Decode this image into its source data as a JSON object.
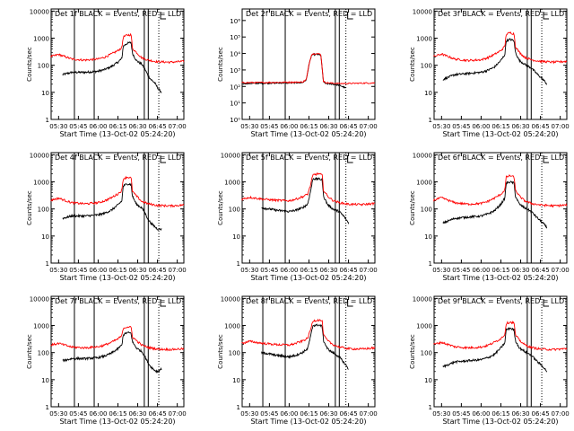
{
  "figure": {
    "xlabel": "Start Time (13-Oct-02 05:24:20)",
    "ylabel": "Counts/sec",
    "x_tick_labels": [
      "05:30",
      "05:45",
      "06:00",
      "06:15",
      "06:30",
      "06:45",
      "07:00"
    ],
    "colors": {
      "events": "#000000",
      "lld": "#ff0000",
      "axes": "#000000"
    }
  },
  "chart_data": [
    {
      "type": "line",
      "title": "Det 1f BLACK = Events, RED = LLD",
      "xlim": [
        "05:24:20",
        "07:05:00"
      ],
      "ylim": [
        1,
        12000
      ],
      "yscale": "log",
      "y_tick_labels": [
        "1",
        "10",
        "100",
        "1000",
        "10000"
      ],
      "events_start": "05:33",
      "events_end": "06:48",
      "vlines_solid": [
        "05:42",
        "05:57",
        "06:35",
        "06:38"
      ],
      "vlines_dotted": [
        "06:46"
      ],
      "series": [
        {
          "name": "Events",
          "x": [
            "05:33",
            "05:40",
            "05:50",
            "06:00",
            "06:05",
            "06:10",
            "06:15",
            "06:18",
            "06:19",
            "06:22",
            "06:25",
            "06:26",
            "06:29",
            "06:33",
            "06:35",
            "06:38",
            "06:40",
            "06:43",
            "06:45",
            "06:48"
          ],
          "y": [
            45,
            55,
            55,
            60,
            70,
            90,
            130,
            180,
            500,
            650,
            700,
            280,
            150,
            110,
            80,
            40,
            30,
            22,
            15,
            10
          ]
        },
        {
          "name": "LLD",
          "x": [
            "05:24",
            "05:30",
            "05:40",
            "05:50",
            "06:00",
            "06:05",
            "06:10",
            "06:15",
            "06:18",
            "06:19",
            "06:22",
            "06:25",
            "06:26",
            "06:29",
            "06:33",
            "06:38",
            "06:45",
            "06:55",
            "07:05"
          ],
          "y": [
            210,
            250,
            170,
            155,
            170,
            200,
            260,
            350,
            450,
            1100,
            1300,
            1350,
            420,
            300,
            190,
            155,
            135,
            130,
            140
          ]
        }
      ]
    },
    {
      "type": "line",
      "title": "Det 2f BLACK = Events, RED = LLD",
      "xlim": [
        "05:24:20",
        "07:05:00"
      ],
      "ylim": [
        1,
        5000000
      ],
      "yscale": "log",
      "y_tick_labels": [
        "10⁰",
        "10¹",
        "10²",
        "10³",
        "10⁴",
        "10⁵",
        "10⁶"
      ],
      "events_start": "05:24",
      "events_end": "06:43",
      "vlines_solid": [
        "05:40",
        "05:57",
        "06:35",
        "06:38"
      ],
      "vlines_dotted": [
        "06:43"
      ],
      "series": [
        {
          "name": "Events",
          "x": [
            "05:24",
            "05:45",
            "06:00",
            "06:10",
            "06:13",
            "06:15",
            "06:17",
            "06:20",
            "06:24",
            "06:26",
            "06:28",
            "06:32",
            "06:38",
            "06:43"
          ],
          "y": [
            150,
            160,
            165,
            170,
            250,
            2000,
            8000,
            9000,
            8000,
            180,
            150,
            140,
            120,
            80
          ]
        },
        {
          "name": "LLD",
          "x": [
            "05:24",
            "05:45",
            "06:00",
            "06:10",
            "06:13",
            "06:15",
            "06:17",
            "06:20",
            "06:24",
            "06:26",
            "06:28",
            "06:32",
            "06:40",
            "07:05"
          ],
          "y": [
            170,
            175,
            180,
            185,
            260,
            2200,
            9000,
            10000,
            9000,
            200,
            170,
            160,
            150,
            165
          ]
        }
      ]
    },
    {
      "type": "line",
      "title": "Det 3f BLACK = Events, RED = LLD",
      "xlim": [
        "05:24:20",
        "07:05:00"
      ],
      "ylim": [
        1,
        12000
      ],
      "yscale": "log",
      "y_tick_labels": [
        "1",
        "10",
        "100",
        "1000",
        "10000"
      ],
      "events_start": "05:31",
      "events_end": "06:50",
      "vlines_solid": [
        "06:35",
        "06:38"
      ],
      "vlines_dotted": [
        "06:46"
      ],
      "series": [
        {
          "name": "Events",
          "x": [
            "05:31",
            "05:40",
            "05:50",
            "06:00",
            "06:05",
            "06:10",
            "06:15",
            "06:18",
            "06:19",
            "06:22",
            "06:25",
            "06:26",
            "06:29",
            "06:33",
            "06:38",
            "06:43",
            "06:47",
            "06:50"
          ],
          "y": [
            30,
            45,
            50,
            55,
            65,
            85,
            150,
            250,
            800,
            900,
            800,
            300,
            150,
            110,
            80,
            45,
            30,
            20
          ]
        },
        {
          "name": "LLD",
          "x": [
            "05:24",
            "05:30",
            "05:40",
            "05:50",
            "06:00",
            "06:05",
            "06:10",
            "06:15",
            "06:18",
            "06:19",
            "06:22",
            "06:25",
            "06:26",
            "06:29",
            "06:33",
            "06:38",
            "06:45",
            "06:55",
            "07:05"
          ],
          "y": [
            210,
            260,
            170,
            150,
            160,
            190,
            250,
            350,
            500,
            1400,
            1600,
            1450,
            500,
            300,
            200,
            160,
            140,
            130,
            140
          ]
        }
      ]
    },
    {
      "type": "line",
      "title": "Det 4f BLACK = Events, RED = LLD",
      "xlim": [
        "05:24:20",
        "07:05:00"
      ],
      "ylim": [
        1,
        12000
      ],
      "yscale": "log",
      "y_tick_labels": [
        "1",
        "10",
        "100",
        "1000",
        "10000"
      ],
      "events_start": "05:33",
      "events_end": "06:48",
      "vlines_solid": [
        "05:42",
        "05:57",
        "06:35",
        "06:38"
      ],
      "vlines_dotted": [
        "06:46"
      ],
      "series": [
        {
          "name": "Events",
          "x": [
            "05:33",
            "05:40",
            "05:50",
            "06:00",
            "06:05",
            "06:10",
            "06:15",
            "06:18",
            "06:19",
            "06:22",
            "06:25",
            "06:26",
            "06:29",
            "06:33",
            "06:35",
            "06:38",
            "06:40",
            "06:43",
            "06:45",
            "06:48"
          ],
          "y": [
            45,
            55,
            55,
            60,
            70,
            90,
            140,
            200,
            700,
            850,
            800,
            300,
            150,
            110,
            80,
            40,
            30,
            22,
            18,
            18
          ]
        },
        {
          "name": "LLD",
          "x": [
            "05:24",
            "05:30",
            "05:40",
            "05:50",
            "06:00",
            "06:05",
            "06:10",
            "06:15",
            "06:18",
            "06:19",
            "06:22",
            "06:25",
            "06:26",
            "06:29",
            "06:33",
            "06:38",
            "06:45",
            "06:55",
            "07:05"
          ],
          "y": [
            210,
            250,
            170,
            155,
            170,
            200,
            260,
            360,
            480,
            1300,
            1500,
            1400,
            450,
            300,
            190,
            155,
            135,
            130,
            140
          ]
        }
      ]
    },
    {
      "type": "line",
      "title": "Det 5f BLACK = Events, RED = LLD",
      "xlim": [
        "05:24:20",
        "07:05:00"
      ],
      "ylim": [
        1,
        12000
      ],
      "yscale": "log",
      "y_tick_labels": [
        "1",
        "10",
        "100",
        "1000",
        "10000"
      ],
      "events_start": "05:39",
      "events_end": "06:45",
      "vlines_solid": [
        "05:40",
        "05:57",
        "06:35",
        "06:38"
      ],
      "vlines_dotted": [
        "06:43"
      ],
      "series": [
        {
          "name": "Events",
          "x": [
            "05:39",
            "05:45",
            "05:50",
            "06:00",
            "06:05",
            "06:10",
            "06:14",
            "06:16",
            "06:18",
            "06:22",
            "06:25",
            "06:26",
            "06:29",
            "06:33",
            "06:38",
            "06:42",
            "06:45"
          ],
          "y": [
            110,
            100,
            90,
            80,
            90,
            110,
            150,
            400,
            1300,
            1300,
            1200,
            300,
            150,
            100,
            80,
            50,
            30
          ]
        },
        {
          "name": "LLD",
          "x": [
            "05:24",
            "05:30",
            "05:40",
            "05:50",
            "06:00",
            "06:05",
            "06:10",
            "06:14",
            "06:16",
            "06:18",
            "06:22",
            "06:25",
            "06:26",
            "06:29",
            "06:33",
            "06:38",
            "06:45",
            "06:55",
            "07:05"
          ],
          "y": [
            230,
            270,
            230,
            210,
            200,
            230,
            280,
            350,
            700,
            1800,
            2000,
            1800,
            500,
            300,
            210,
            170,
            150,
            145,
            160
          ]
        }
      ]
    },
    {
      "type": "line",
      "title": "Det 6f BLACK = Events, RED = LLD",
      "xlim": [
        "05:24:20",
        "07:05:00"
      ],
      "ylim": [
        1,
        12000
      ],
      "yscale": "log",
      "y_tick_labels": [
        "1",
        "10",
        "100",
        "1000",
        "10000"
      ],
      "events_start": "05:31",
      "events_end": "06:50",
      "vlines_solid": [
        "06:35",
        "06:38"
      ],
      "vlines_dotted": [
        "06:46"
      ],
      "series": [
        {
          "name": "Events",
          "x": [
            "05:31",
            "05:40",
            "05:50",
            "06:00",
            "06:05",
            "06:10",
            "06:15",
            "06:18",
            "06:19",
            "06:22",
            "06:25",
            "06:26",
            "06:29",
            "06:33",
            "06:38",
            "06:43",
            "06:47",
            "06:50"
          ],
          "y": [
            30,
            45,
            50,
            55,
            65,
            85,
            150,
            250,
            900,
            1000,
            900,
            300,
            150,
            110,
            80,
            45,
            30,
            20
          ]
        },
        {
          "name": "LLD",
          "x": [
            "05:24",
            "05:30",
            "05:40",
            "05:50",
            "06:00",
            "06:05",
            "06:10",
            "06:15",
            "06:18",
            "06:19",
            "06:22",
            "06:25",
            "06:26",
            "06:29",
            "06:33",
            "06:38",
            "06:45",
            "06:55",
            "07:05"
          ],
          "y": [
            210,
            260,
            170,
            150,
            160,
            190,
            250,
            350,
            500,
            1500,
            1700,
            1500,
            500,
            300,
            200,
            160,
            140,
            130,
            140
          ]
        }
      ]
    },
    {
      "type": "line",
      "title": "Det 7f BLACK = Events, RED = LLD",
      "xlim": [
        "05:24:20",
        "07:05:00"
      ],
      "ylim": [
        1,
        12000
      ],
      "yscale": "log",
      "y_tick_labels": [
        "1",
        "10",
        "100",
        "1000",
        "10000"
      ],
      "events_start": "05:33",
      "events_end": "06:48",
      "vlines_solid": [
        "05:42",
        "05:57",
        "06:35",
        "06:38"
      ],
      "vlines_dotted": [
        "06:46"
      ],
      "series": [
        {
          "name": "Events",
          "x": [
            "05:33",
            "05:40",
            "05:50",
            "06:00",
            "06:05",
            "06:10",
            "06:15",
            "06:18",
            "06:19",
            "06:22",
            "06:25",
            "06:26",
            "06:29",
            "06:33",
            "06:35",
            "06:38",
            "06:40",
            "06:43",
            "06:45",
            "06:48"
          ],
          "y": [
            50,
            60,
            60,
            65,
            75,
            95,
            140,
            190,
            450,
            550,
            520,
            250,
            150,
            110,
            80,
            40,
            30,
            22,
            20,
            25
          ]
        },
        {
          "name": "LLD",
          "x": [
            "05:24",
            "05:30",
            "05:40",
            "05:50",
            "06:00",
            "06:05",
            "06:10",
            "06:15",
            "06:18",
            "06:19",
            "06:22",
            "06:25",
            "06:26",
            "06:29",
            "06:33",
            "06:38",
            "06:45",
            "06:55",
            "07:05"
          ],
          "y": [
            190,
            220,
            160,
            150,
            165,
            190,
            240,
            320,
            420,
            800,
            900,
            850,
            380,
            280,
            190,
            155,
            135,
            130,
            140
          ]
        }
      ]
    },
    {
      "type": "line",
      "title": "Det 8f BLACK = Events, RED = LLD",
      "xlim": [
        "05:24:20",
        "07:05:00"
      ],
      "ylim": [
        1,
        12000
      ],
      "yscale": "log",
      "y_tick_labels": [
        "1",
        "10",
        "100",
        "1000",
        "10000"
      ],
      "events_start": "05:39",
      "events_end": "06:45",
      "vlines_solid": [
        "05:40",
        "05:57",
        "06:35",
        "06:38"
      ],
      "vlines_dotted": [
        "06:43"
      ],
      "series": [
        {
          "name": "Events",
          "x": [
            "05:39",
            "05:45",
            "05:50",
            "06:00",
            "06:05",
            "06:10",
            "06:14",
            "06:16",
            "06:18",
            "06:22",
            "06:25",
            "06:26",
            "06:29",
            "06:33",
            "06:38",
            "06:42",
            "06:45"
          ],
          "y": [
            100,
            90,
            80,
            70,
            80,
            100,
            140,
            350,
            1000,
            1050,
            950,
            280,
            140,
            100,
            70,
            40,
            25
          ]
        },
        {
          "name": "LLD",
          "x": [
            "05:24",
            "05:30",
            "05:40",
            "05:50",
            "06:00",
            "06:05",
            "06:10",
            "06:14",
            "06:16",
            "06:18",
            "06:22",
            "06:25",
            "06:26",
            "06:29",
            "06:33",
            "06:38",
            "06:45",
            "06:55",
            "07:05"
          ],
          "y": [
            220,
            260,
            220,
            200,
            190,
            220,
            270,
            340,
            650,
            1500,
            1600,
            1500,
            450,
            280,
            200,
            160,
            140,
            135,
            150
          ]
        }
      ]
    },
    {
      "type": "line",
      "title": "Det 9f BLACK = Events, RED = LLD",
      "xlim": [
        "05:24:20",
        "07:05:00"
      ],
      "ylim": [
        1,
        12000
      ],
      "yscale": "log",
      "y_tick_labels": [
        "1",
        "10",
        "100",
        "1000",
        "10000"
      ],
      "events_start": "05:31",
      "events_end": "06:50",
      "vlines_solid": [
        "06:35",
        "06:38"
      ],
      "vlines_dotted": [
        "06:46"
      ],
      "series": [
        {
          "name": "Events",
          "x": [
            "05:31",
            "05:40",
            "05:50",
            "06:00",
            "06:05",
            "06:10",
            "06:15",
            "06:18",
            "06:19",
            "06:22",
            "06:25",
            "06:26",
            "06:29",
            "06:33",
            "06:38",
            "06:43",
            "06:47",
            "06:50"
          ],
          "y": [
            30,
            45,
            50,
            55,
            65,
            85,
            150,
            230,
            700,
            800,
            700,
            280,
            150,
            110,
            80,
            45,
            30,
            20
          ]
        },
        {
          "name": "LLD",
          "x": [
            "05:24",
            "05:30",
            "05:40",
            "05:50",
            "06:00",
            "06:05",
            "06:10",
            "06:15",
            "06:18",
            "06:19",
            "06:22",
            "06:25",
            "06:26",
            "06:29",
            "06:33",
            "06:38",
            "06:45",
            "06:55",
            "07:05"
          ],
          "y": [
            200,
            240,
            165,
            150,
            160,
            185,
            240,
            330,
            470,
            1200,
            1350,
            1250,
            450,
            290,
            195,
            155,
            135,
            130,
            140
          ]
        }
      ]
    }
  ]
}
